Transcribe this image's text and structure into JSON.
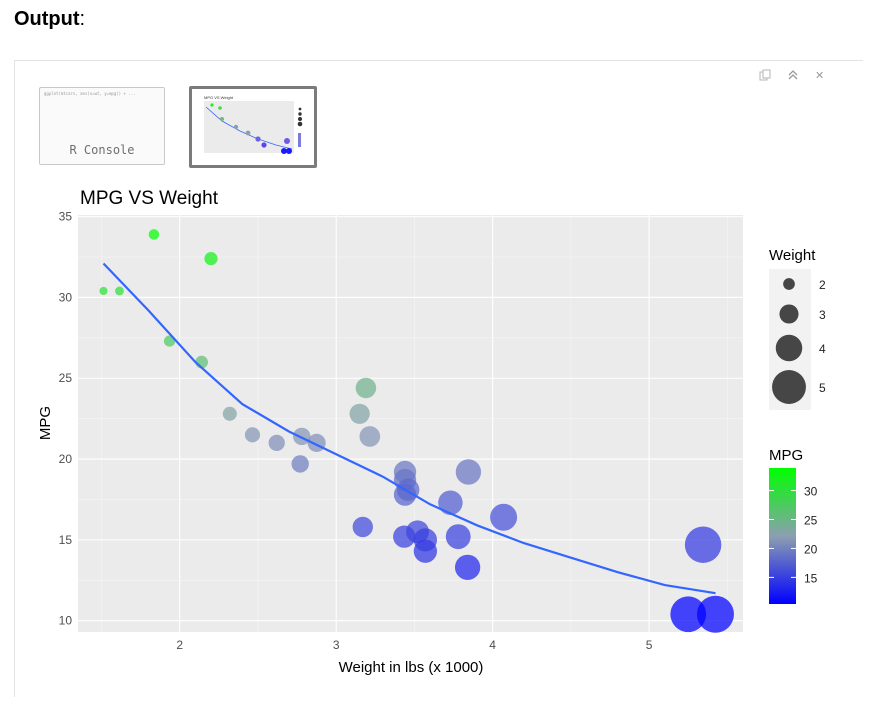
{
  "page": {
    "heading_bold": "Output",
    "heading_rest": ":"
  },
  "window_controls": {
    "copy_icon": "copy-icon",
    "collapse_icon": "chevrons-up-icon",
    "close_label": "✕"
  },
  "thumbnails": {
    "console_label": "R Console",
    "console_code": "ggplot(mtcars, aes(x=wt, y=mpg)) + ..."
  },
  "colors": {
    "panel_bg": "#ebebeb",
    "grid_major": "#ffffff",
    "smooth_line": "#3366ff",
    "mpg_low": "#0000ff",
    "mpg_mid": "#8c9fb0",
    "mpg_high": "#00ff00",
    "size_key": "#333333"
  },
  "chart_data": {
    "type": "scatter",
    "title": "MPG VS Weight",
    "xlabel": "Weight in lbs (x 1000)",
    "ylabel": "MPG",
    "xlim": [
      1.35,
      5.6
    ],
    "ylim": [
      9.3,
      35.1
    ],
    "x_ticks": [
      2,
      3,
      4,
      5
    ],
    "y_ticks": [
      10,
      15,
      20,
      25,
      30,
      35
    ],
    "points": [
      {
        "x": 2.62,
        "y": 21.0
      },
      {
        "x": 2.875,
        "y": 21.0
      },
      {
        "x": 2.32,
        "y": 22.8
      },
      {
        "x": 3.215,
        "y": 21.4
      },
      {
        "x": 3.44,
        "y": 18.7
      },
      {
        "x": 3.46,
        "y": 18.1
      },
      {
        "x": 3.57,
        "y": 14.3
      },
      {
        "x": 3.19,
        "y": 24.4
      },
      {
        "x": 3.15,
        "y": 22.8
      },
      {
        "x": 3.44,
        "y": 19.2
      },
      {
        "x": 3.44,
        "y": 17.8
      },
      {
        "x": 4.07,
        "y": 16.4
      },
      {
        "x": 3.73,
        "y": 17.3
      },
      {
        "x": 3.78,
        "y": 15.2
      },
      {
        "x": 5.25,
        "y": 10.4
      },
      {
        "x": 5.424,
        "y": 10.4
      },
      {
        "x": 5.345,
        "y": 14.7
      },
      {
        "x": 2.2,
        "y": 32.4
      },
      {
        "x": 1.615,
        "y": 30.4
      },
      {
        "x": 1.835,
        "y": 33.9
      },
      {
        "x": 2.465,
        "y": 21.5
      },
      {
        "x": 3.52,
        "y": 15.5
      },
      {
        "x": 3.435,
        "y": 15.2
      },
      {
        "x": 3.84,
        "y": 13.3
      },
      {
        "x": 3.845,
        "y": 19.2
      },
      {
        "x": 1.935,
        "y": 27.3
      },
      {
        "x": 2.14,
        "y": 26.0
      },
      {
        "x": 1.513,
        "y": 30.4
      },
      {
        "x": 3.17,
        "y": 15.8
      },
      {
        "x": 2.77,
        "y": 19.7
      },
      {
        "x": 3.57,
        "y": 15.0
      },
      {
        "x": 2.78,
        "y": 21.4
      }
    ],
    "smooth": {
      "method": "loess",
      "x": [
        1.513,
        1.8,
        2.1,
        2.4,
        2.7,
        3.0,
        3.3,
        3.6,
        3.9,
        4.2,
        4.5,
        4.8,
        5.1,
        5.424
      ],
      "y": [
        32.1,
        29.2,
        26.0,
        23.4,
        21.7,
        20.3,
        18.9,
        17.2,
        15.9,
        14.8,
        13.9,
        13.0,
        12.2,
        11.7
      ]
    },
    "legend_size": {
      "title": "Weight",
      "labels": [
        "2",
        "3",
        "4",
        "5"
      ],
      "values": [
        2,
        3,
        4,
        5
      ],
      "position": "right"
    },
    "legend_color": {
      "title": "MPG",
      "labels": [
        "30",
        "25",
        "20",
        "15"
      ],
      "values": [
        30,
        25,
        20,
        15
      ],
      "range": [
        10.4,
        33.9
      ],
      "position": "right"
    }
  }
}
